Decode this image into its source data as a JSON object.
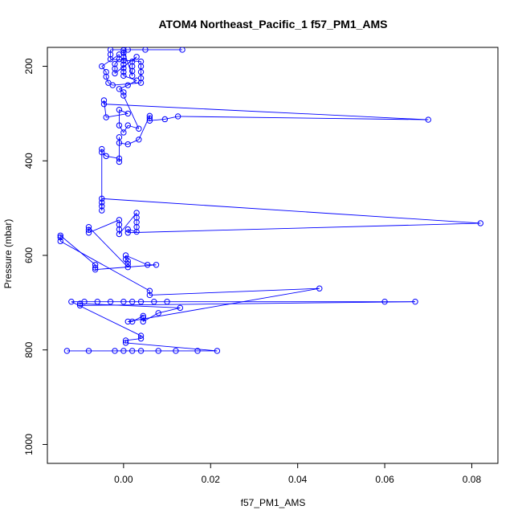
{
  "chart_data": {
    "type": "scatter",
    "title": "ATOM4 Northeast_Pacific_1 f57_PM1_AMS",
    "xlabel": "f57_PM1_AMS",
    "ylabel": "Pressure (mbar)",
    "xlim": [
      -0.0175,
      0.086
    ],
    "ylim": [
      1040,
      160
    ],
    "y_reversed": true,
    "grid": false,
    "legend": "none",
    "xticks": [
      0.0,
      0.02,
      0.04,
      0.06,
      0.08
    ],
    "xtick_labels": [
      "0.00",
      "0.02",
      "0.04",
      "0.06",
      "0.08"
    ],
    "yticks": [
      200,
      400,
      600,
      800,
      1000
    ],
    "ytick_labels": [
      "200",
      "400",
      "600",
      "800",
      "1000"
    ],
    "series": [
      {
        "marker": "open-circle",
        "line": true,
        "color": "#0000ff",
        "points": [
          [
            -0.013,
            802
          ],
          [
            -0.008,
            802
          ],
          [
            -0.002,
            802
          ],
          [
            0.0,
            802
          ],
          [
            0.002,
            802
          ],
          [
            0.004,
            802
          ],
          [
            0.008,
            802
          ],
          [
            0.012,
            802
          ],
          [
            0.017,
            802
          ],
          [
            0.0215,
            802
          ],
          [
            0.0005,
            785
          ],
          [
            0.0005,
            780
          ],
          [
            0.004,
            776
          ],
          [
            0.004,
            770
          ],
          [
            -0.012,
            698
          ],
          [
            -0.009,
            698
          ],
          [
            -0.006,
            698
          ],
          [
            -0.003,
            698
          ],
          [
            0.0,
            698
          ],
          [
            0.002,
            698
          ],
          [
            0.004,
            698
          ],
          [
            0.007,
            698
          ],
          [
            0.01,
            698
          ],
          [
            0.06,
            698
          ],
          [
            0.067,
            698
          ],
          [
            -0.01,
            706
          ],
          [
            -0.01,
            702
          ],
          [
            0.013,
            711
          ],
          [
            0.008,
            722
          ],
          [
            0.0045,
            740
          ],
          [
            0.0045,
            732
          ],
          [
            0.0045,
            728
          ],
          [
            0.002,
            740
          ],
          [
            0.001,
            740
          ],
          [
            0.045,
            670
          ],
          [
            0.006,
            684
          ],
          [
            0.006,
            675
          ],
          [
            -0.0145,
            570
          ],
          [
            -0.0145,
            562
          ],
          [
            -0.0145,
            558
          ],
          [
            -0.0065,
            620
          ],
          [
            -0.0065,
            626
          ],
          [
            -0.0065,
            630
          ],
          [
            0.0075,
            620
          ],
          [
            0.0055,
            620
          ],
          [
            0.0005,
            600
          ],
          [
            0.0005,
            608
          ],
          [
            0.001,
            612
          ],
          [
            0.001,
            618
          ],
          [
            0.001,
            625
          ],
          [
            -0.008,
            540
          ],
          [
            -0.008,
            546
          ],
          [
            -0.008,
            552
          ],
          [
            -0.001,
            525
          ],
          [
            -0.001,
            535
          ],
          [
            -0.001,
            545
          ],
          [
            -0.001,
            555
          ],
          [
            0.003,
            510
          ],
          [
            0.003,
            520
          ],
          [
            0.003,
            530
          ],
          [
            0.003,
            540
          ],
          [
            0.003,
            550
          ],
          [
            0.001,
            545
          ],
          [
            0.001,
            552
          ],
          [
            0.082,
            532
          ],
          [
            -0.005,
            480
          ],
          [
            -0.005,
            488
          ],
          [
            -0.005,
            496
          ],
          [
            -0.005,
            505
          ],
          [
            -0.005,
            375
          ],
          [
            -0.005,
            382
          ],
          [
            -0.004,
            390
          ],
          [
            -0.001,
            395
          ],
          [
            -0.001,
            402
          ],
          [
            -0.001,
            350
          ],
          [
            -0.001,
            362
          ],
          [
            0.001,
            365
          ],
          [
            0.0035,
            355
          ],
          [
            0.006,
            305
          ],
          [
            0.006,
            310
          ],
          [
            0.006,
            315
          ],
          [
            0.0095,
            312
          ],
          [
            0.0125,
            306
          ],
          [
            0.07,
            313
          ],
          [
            -0.0045,
            280
          ],
          [
            -0.0045,
            272
          ],
          [
            -0.004,
            308
          ],
          [
            0.001,
            300
          ],
          [
            -0.001,
            292
          ],
          [
            -0.001,
            325
          ],
          [
            0.0,
            340
          ],
          [
            0.001,
            325
          ],
          [
            0.0035,
            332
          ],
          [
            0.0,
            262
          ],
          [
            0.0,
            255
          ],
          [
            -0.001,
            248
          ],
          [
            0.001,
            240
          ],
          [
            0.003,
            230
          ],
          [
            0.0,
            220
          ],
          [
            0.0,
            212
          ],
          [
            0.0,
            204
          ],
          [
            0.0,
            196
          ],
          [
            0.0,
            188
          ],
          [
            0.0,
            180
          ],
          [
            0.0,
            172
          ],
          [
            0.0,
            166
          ],
          [
            0.002,
            220
          ],
          [
            0.002,
            210
          ],
          [
            0.002,
            200
          ],
          [
            0.002,
            190
          ],
          [
            0.003,
            180
          ],
          [
            -0.002,
            215
          ],
          [
            -0.002,
            205
          ],
          [
            -0.002,
            195
          ],
          [
            -0.001,
            185
          ],
          [
            -0.001,
            175
          ],
          [
            -0.005,
            200
          ],
          [
            -0.004,
            212
          ],
          [
            -0.004,
            222
          ],
          [
            -0.0035,
            235
          ],
          [
            -0.0025,
            240
          ],
          [
            0.004,
            235
          ],
          [
            0.004,
            225
          ],
          [
            0.004,
            212
          ],
          [
            0.004,
            200
          ],
          [
            0.004,
            190
          ],
          [
            -0.003,
            185
          ],
          [
            -0.003,
            175
          ],
          [
            -0.003,
            165
          ],
          [
            0.001,
            165
          ],
          [
            0.005,
            165
          ],
          [
            0.0135,
            165
          ]
        ]
      }
    ]
  }
}
